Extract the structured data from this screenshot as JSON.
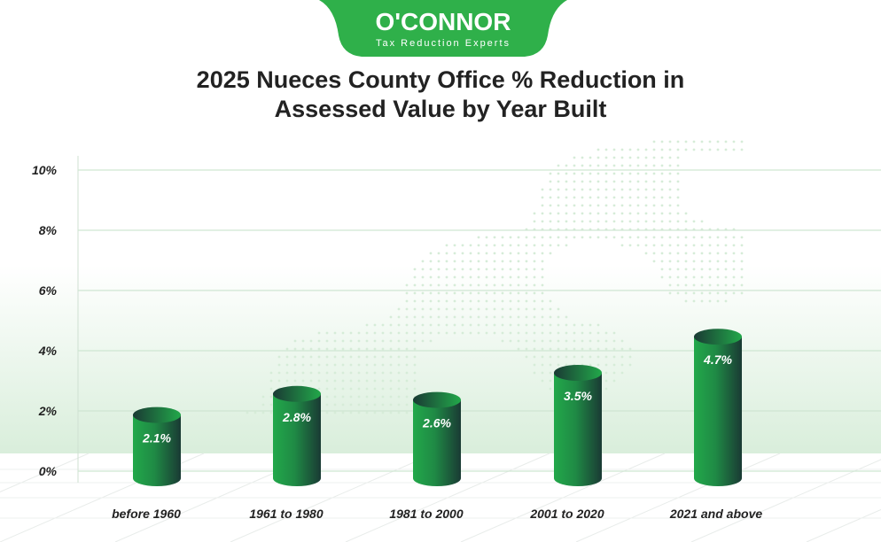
{
  "logo": {
    "name": "O'CONNOR",
    "tagline": "Tax Reduction Experts",
    "color": "#2fb04a"
  },
  "chart_data": {
    "type": "bar",
    "style": "3d-cylinder",
    "title": "2025 Nueces County Office % Reduction in Assessed Value by Year Built",
    "title_lines": [
      "2025 Nueces County Office % Reduction in",
      "Assessed Value by Year Built"
    ],
    "categories": [
      "before 1960",
      "1961 to 1980",
      "1981 to 2000",
      "2001 to 2020",
      "2021 and above"
    ],
    "values": [
      2.1,
      2.8,
      2.6,
      3.5,
      4.7
    ],
    "data_labels": [
      "2.1%",
      "2.8%",
      "2.6%",
      "3.5%",
      "4.7%"
    ],
    "ylim": [
      0,
      10
    ],
    "yticks": [
      0,
      2,
      4,
      6,
      8,
      10
    ],
    "ytick_labels": [
      "0%",
      "2%",
      "4%",
      "6%",
      "8%",
      "10%"
    ],
    "xlabel": "",
    "ylabel": "",
    "grid": true,
    "colors": {
      "bar_light": "#22a84a",
      "bar_dark": "#1a3a34",
      "grid": "#cfe6d2"
    }
  }
}
